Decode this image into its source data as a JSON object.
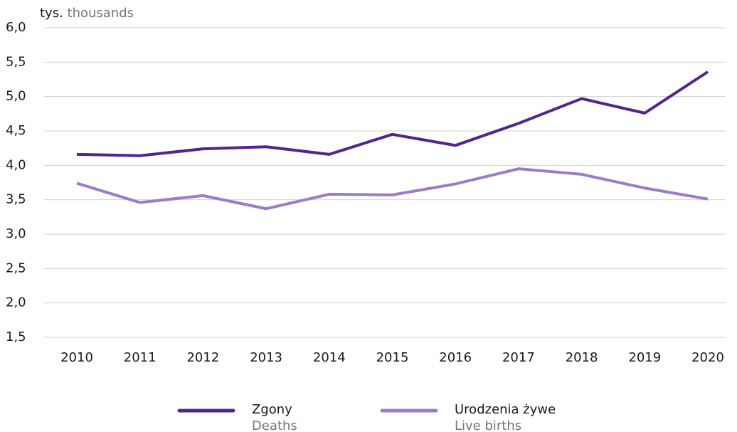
{
  "chart_data": {
    "type": "line",
    "unit_label": "tys.",
    "unit_label_en": "thousands",
    "categories": [
      "2010",
      "2011",
      "2012",
      "2013",
      "2014",
      "2015",
      "2016",
      "2017",
      "2018",
      "2019",
      "2020"
    ],
    "series": [
      {
        "name": "Zgony",
        "name_en": "Deaths",
        "color": "#52248f",
        "values": [
          4.16,
          4.14,
          4.24,
          4.27,
          4.16,
          4.45,
          4.29,
          4.61,
          4.97,
          4.76,
          5.36
        ]
      },
      {
        "name": "Urodzenia żywe",
        "name_en": "Live births",
        "color": "#9a7cc7",
        "values": [
          3.74,
          3.46,
          3.56,
          3.37,
          3.58,
          3.57,
          3.73,
          3.95,
          3.87,
          3.67,
          3.51
        ]
      }
    ],
    "ylim": [
      1.5,
      6.0
    ],
    "yticks": [
      {
        "value": 1.5,
        "label": "1,5"
      },
      {
        "value": 2.0,
        "label": "2,0"
      },
      {
        "value": 2.5,
        "label": "2,5"
      },
      {
        "value": 3.0,
        "label": "3,0"
      },
      {
        "value": 3.5,
        "label": "3,5"
      },
      {
        "value": 4.0,
        "label": "4,0"
      },
      {
        "value": 4.5,
        "label": "4,5"
      },
      {
        "value": 5.0,
        "label": "5,0"
      },
      {
        "value": 5.5,
        "label": "5,5"
      },
      {
        "value": 6.0,
        "label": "6,0"
      }
    ],
    "grid": true
  }
}
